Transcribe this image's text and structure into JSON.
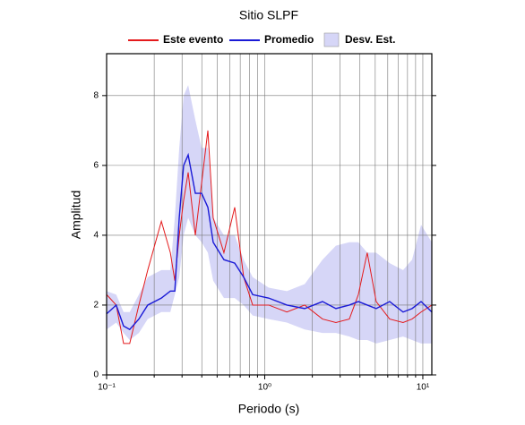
{
  "chart_data": {
    "type": "line",
    "title": "Sitio SLPF",
    "xlabel": "Periodo (s)",
    "ylabel": "Amplitud",
    "xscale": "log",
    "xlim": [
      0.1,
      11.4
    ],
    "ylim": [
      0,
      9.2
    ],
    "xticks": [
      {
        "value": 0.1,
        "label": "10⁻¹"
      },
      {
        "value": 1,
        "label": "10⁰"
      },
      {
        "value": 10,
        "label": "10¹"
      }
    ],
    "xgrid": [
      0.2,
      0.3,
      0.4,
      0.5,
      0.6,
      0.7,
      0.8,
      0.9,
      2,
      3,
      4,
      5,
      6,
      7,
      8,
      9
    ],
    "yticks": [
      0,
      2,
      4,
      6,
      8
    ],
    "grid": true,
    "legend": "top",
    "x": [
      0.1,
      0.115,
      0.128,
      0.14,
      0.16,
      0.182,
      0.222,
      0.253,
      0.27,
      0.288,
      0.307,
      0.328,
      0.364,
      0.399,
      0.437,
      0.472,
      0.552,
      0.646,
      0.736,
      0.839,
      1.06,
      1.38,
      1.79,
      2.32,
      2.82,
      3.43,
      3.91,
      4.45,
      5.07,
      6.17,
      7.5,
      8.55,
      9.75,
      11.4
    ],
    "series": [
      {
        "name": "Este evento",
        "color": "#e41a1c",
        "values": [
          2.3,
          2.0,
          0.9,
          0.9,
          2.0,
          3.0,
          4.4,
          3.5,
          2.7,
          4.0,
          5.0,
          5.8,
          4.0,
          5.5,
          7.0,
          4.5,
          3.5,
          4.8,
          2.8,
          2.0,
          2.0,
          1.8,
          2.0,
          1.6,
          1.5,
          1.6,
          2.3,
          3.5,
          2.1,
          1.6,
          1.5,
          1.6,
          1.8,
          2.0
        ]
      },
      {
        "name": "Promedio",
        "color": "#1a1ad6",
        "values": [
          1.75,
          2.0,
          1.4,
          1.3,
          1.6,
          2.0,
          2.2,
          2.4,
          2.4,
          4.5,
          6.0,
          6.3,
          5.2,
          5.2,
          4.8,
          3.8,
          3.3,
          3.2,
          2.8,
          2.3,
          2.2,
          2.0,
          1.9,
          2.1,
          1.9,
          2.0,
          2.1,
          2.0,
          1.9,
          2.1,
          1.8,
          1.9,
          2.1,
          1.8
        ]
      }
    ],
    "band": {
      "name": "Desv. Est.",
      "color": "#d6d6f7",
      "upper": [
        2.4,
        2.3,
        1.8,
        1.8,
        2.3,
        2.8,
        3.0,
        3.0,
        4.5,
        6.5,
        8.0,
        8.3,
        7.3,
        6.5,
        6.5,
        4.5,
        4.0,
        4.0,
        3.3,
        2.8,
        2.5,
        2.4,
        2.6,
        3.3,
        3.7,
        3.8,
        3.8,
        3.5,
        3.5,
        3.2,
        3.0,
        3.3,
        4.3,
        3.8
      ],
      "lower": [
        1.3,
        1.5,
        1.2,
        1.0,
        1.2,
        1.6,
        1.8,
        1.8,
        2.3,
        2.8,
        4.0,
        4.5,
        4.0,
        3.8,
        3.5,
        2.7,
        2.2,
        2.2,
        2.0,
        1.7,
        1.6,
        1.5,
        1.3,
        1.2,
        1.2,
        1.1,
        1.0,
        1.0,
        0.9,
        1.0,
        1.1,
        1.0,
        0.9,
        0.9
      ]
    }
  }
}
